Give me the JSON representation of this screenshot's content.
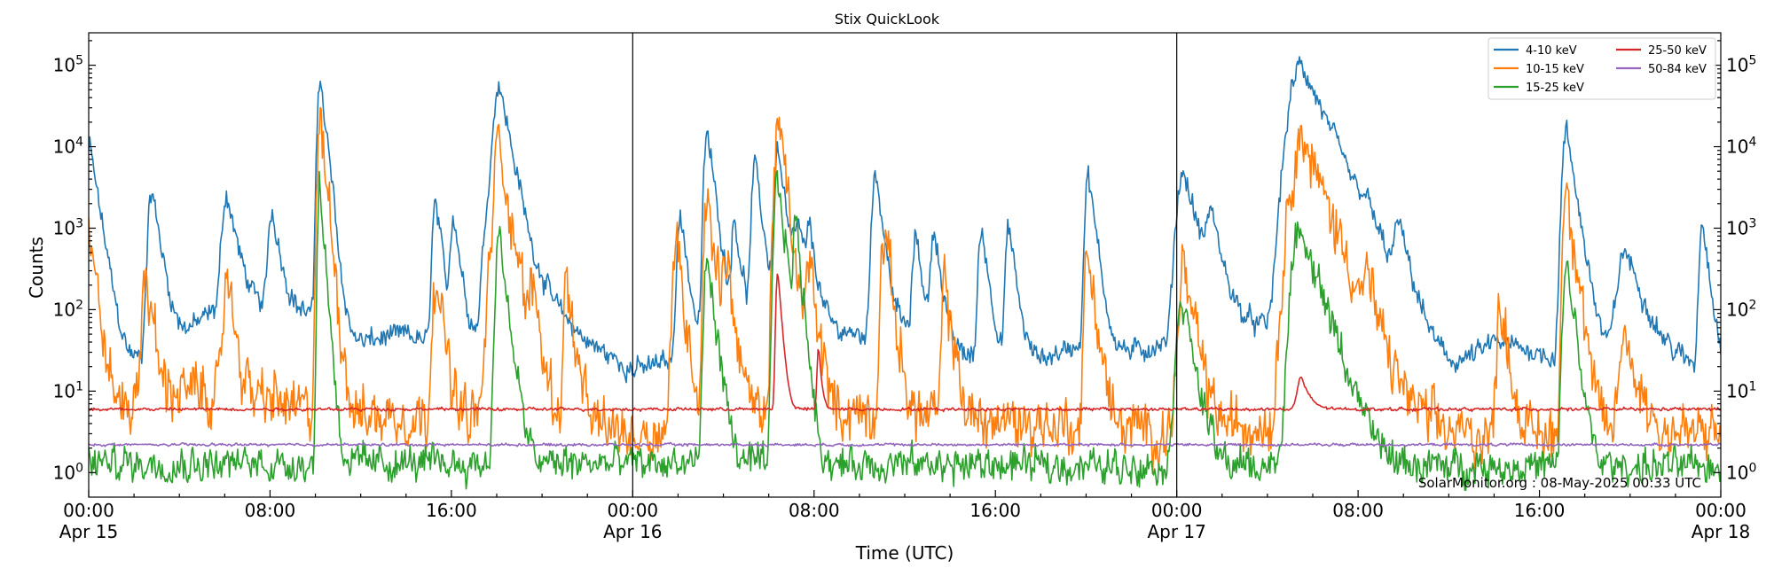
{
  "chart_data": {
    "type": "line",
    "title": "Stix QuickLook",
    "xlabel": "Time (UTC)",
    "ylabel": "Counts",
    "yscale": "log",
    "ylim": [
      0.5,
      250000
    ],
    "xlim": [
      0,
      72
    ],
    "x_unit": "hours since Apr 15 00:00 UTC",
    "x_ticks": [
      {
        "x": 0,
        "label": "00:00",
        "sublabel": "Apr 15"
      },
      {
        "x": 8,
        "label": "08:00",
        "sublabel": ""
      },
      {
        "x": 16,
        "label": "16:00",
        "sublabel": ""
      },
      {
        "x": 24,
        "label": "00:00",
        "sublabel": "Apr 16"
      },
      {
        "x": 32,
        "label": "08:00",
        "sublabel": ""
      },
      {
        "x": 40,
        "label": "16:00",
        "sublabel": ""
      },
      {
        "x": 48,
        "label": "00:00",
        "sublabel": "Apr 17"
      },
      {
        "x": 56,
        "label": "08:00",
        "sublabel": ""
      },
      {
        "x": 64,
        "label": "16:00",
        "sublabel": ""
      },
      {
        "x": 72,
        "label": "00:00",
        "sublabel": "Apr 18"
      }
    ],
    "y_ticks": [
      {
        "value": 1,
        "base": "10",
        "exp": "0"
      },
      {
        "value": 10,
        "base": "10",
        "exp": "1"
      },
      {
        "value": 100,
        "base": "10",
        "exp": "2"
      },
      {
        "value": 1000,
        "base": "10",
        "exp": "3"
      },
      {
        "value": 10000,
        "base": "10",
        "exp": "4"
      },
      {
        "value": 100000,
        "base": "10",
        "exp": "5"
      }
    ],
    "day_boundaries": [
      24,
      48
    ],
    "grid": false,
    "legend_position": "top-right",
    "annotation": "SolarMonitor.org : 08-May-2025 00:33 UTC",
    "series": [
      {
        "name": "4-10 keV",
        "color": "#1f77b4",
        "baseline": [
          [
            0,
            60
          ],
          [
            0.4,
            15
          ],
          [
            3,
            30
          ],
          [
            6,
            120
          ],
          [
            8,
            100
          ],
          [
            10,
            90
          ],
          [
            12,
            40
          ],
          [
            14,
            50
          ],
          [
            16,
            30
          ],
          [
            18,
            60
          ],
          [
            20,
            150
          ],
          [
            22,
            40
          ],
          [
            24,
            18
          ],
          [
            26,
            25
          ],
          [
            28,
            60
          ],
          [
            30,
            80
          ],
          [
            32,
            60
          ],
          [
            34,
            50
          ],
          [
            36,
            60
          ],
          [
            38,
            30
          ],
          [
            40,
            25
          ],
          [
            42,
            25
          ],
          [
            44,
            40
          ],
          [
            46,
            30
          ],
          [
            48,
            40
          ],
          [
            50,
            80
          ],
          [
            52,
            60
          ],
          [
            54,
            80
          ],
          [
            55.5,
            20
          ],
          [
            57,
            25
          ],
          [
            60,
            15
          ],
          [
            62,
            40
          ],
          [
            64,
            30
          ],
          [
            66,
            20
          ],
          [
            68,
            40
          ],
          [
            70,
            25
          ],
          [
            72,
            15
          ]
        ],
        "peaks": [
          [
            0.05,
            10000,
            0.25
          ],
          [
            2.8,
            2800,
            0.25
          ],
          [
            6.1,
            2500,
            0.3
          ],
          [
            8.1,
            1600,
            0.25
          ],
          [
            10.2,
            80000,
            0.15
          ],
          [
            10.6,
            3000,
            0.15
          ],
          [
            15.3,
            2000,
            0.2
          ],
          [
            16.1,
            1500,
            0.2
          ],
          [
            17.8,
            4000,
            0.4
          ],
          [
            18.1,
            60000,
            0.3
          ],
          [
            26.1,
            1500,
            0.2
          ],
          [
            27.3,
            15000,
            0.2
          ],
          [
            29.4,
            6000,
            0.2
          ],
          [
            31.3,
            1000,
            0.3
          ],
          [
            28.5,
            1200,
            0.2
          ],
          [
            30.4,
            10000,
            0.2
          ],
          [
            31.8,
            800,
            0.2
          ],
          [
            34.7,
            5500,
            0.2
          ],
          [
            36.5,
            800,
            0.2
          ],
          [
            37.3,
            1000,
            0.2
          ],
          [
            39.4,
            1000,
            0.2
          ],
          [
            40.6,
            1000,
            0.2
          ],
          [
            44.1,
            4500,
            0.2
          ],
          [
            48.3,
            5000,
            0.4
          ],
          [
            49.5,
            1500,
            0.3
          ],
          [
            53.5,
            100000,
            0.7
          ],
          [
            56.3,
            1000,
            0.3
          ],
          [
            57.8,
            1000,
            0.3
          ],
          [
            65.2,
            15000,
            0.25
          ],
          [
            67.8,
            500,
            0.5
          ],
          [
            71.2,
            1200,
            0.2
          ]
        ],
        "noise": 0.35
      },
      {
        "name": "10-15 keV",
        "color": "#ff7f0e",
        "baseline": [
          [
            0,
            5
          ],
          [
            4,
            10
          ],
          [
            8,
            8
          ],
          [
            10,
            5
          ],
          [
            14,
            5
          ],
          [
            16,
            4
          ],
          [
            18,
            6
          ],
          [
            20,
            5
          ],
          [
            24,
            3
          ],
          [
            30,
            6
          ],
          [
            36,
            5
          ],
          [
            42,
            4
          ],
          [
            48,
            3
          ],
          [
            52,
            4
          ],
          [
            56,
            5
          ],
          [
            60,
            3
          ],
          [
            66,
            3
          ],
          [
            72,
            3
          ]
        ],
        "peaks": [
          [
            0.05,
            800,
            0.2
          ],
          [
            2.5,
            300,
            0.2
          ],
          [
            6.1,
            300,
            0.2
          ],
          [
            10.2,
            20000,
            0.15
          ],
          [
            10.6,
            500,
            0.15
          ],
          [
            15.3,
            300,
            0.2
          ],
          [
            17.8,
            400,
            0.3
          ],
          [
            18.1,
            12000,
            0.25
          ],
          [
            19.6,
            200,
            0.2
          ],
          [
            21.1,
            200,
            0.2
          ],
          [
            25.9,
            700,
            0.2
          ],
          [
            27.3,
            2500,
            0.2
          ],
          [
            28.1,
            500,
            0.2
          ],
          [
            30.4,
            20000,
            0.2
          ],
          [
            31.8,
            400,
            0.2
          ],
          [
            35.1,
            900,
            0.2
          ],
          [
            37.8,
            200,
            0.2
          ],
          [
            44.1,
            500,
            0.2
          ],
          [
            48.3,
            300,
            0.3
          ],
          [
            53.5,
            13000,
            0.6
          ],
          [
            56.4,
            200,
            0.2
          ],
          [
            62.3,
            150,
            0.2
          ],
          [
            65.2,
            3500,
            0.2
          ],
          [
            67.8,
            40,
            0.4
          ]
        ],
        "noise": 0.9
      },
      {
        "name": "15-25 keV",
        "color": "#2ca02c",
        "baseline": [
          [
            0,
            1.3
          ],
          [
            24,
            1.3
          ],
          [
            48,
            1.2
          ],
          [
            72,
            1.2
          ]
        ],
        "peaks": [
          [
            10.2,
            3500,
            0.12
          ],
          [
            18.1,
            800,
            0.2
          ],
          [
            27.3,
            400,
            0.2
          ],
          [
            30.4,
            4000,
            0.2
          ],
          [
            31.2,
            1200,
            0.15
          ],
          [
            53.5,
            1000,
            0.5
          ],
          [
            65.2,
            400,
            0.2
          ],
          [
            48.2,
            150,
            0.3
          ]
        ],
        "noise": 0.55
      },
      {
        "name": "25-50 keV",
        "color": "#d62728",
        "baseline": [
          [
            0,
            6
          ],
          [
            72,
            6
          ]
        ],
        "peaks": [
          [
            30.4,
            300,
            0.12
          ],
          [
            32.2,
            30,
            0.1
          ],
          [
            53.5,
            9,
            0.3
          ]
        ],
        "noise": 0.05
      },
      {
        "name": "50-84 keV",
        "color": "#9467bd",
        "baseline": [
          [
            0,
            2.2
          ],
          [
            72,
            2.2
          ]
        ],
        "peaks": [],
        "noise": 0.04
      }
    ]
  }
}
